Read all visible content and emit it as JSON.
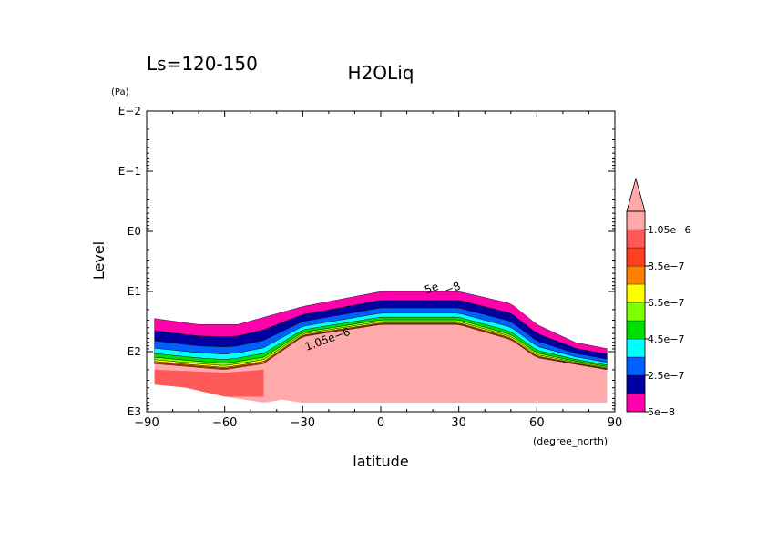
{
  "chart_data": {
    "type": "contour",
    "title": "H2OLiq",
    "subtitle": "Ls=120-150",
    "xlabel": "latitude",
    "xunits": "(degree_north)",
    "ylabel": "Level",
    "yunits": "(Pa)",
    "xlim": [
      -90,
      90
    ],
    "xticks": [
      -90,
      -60,
      -30,
      0,
      30,
      60,
      90
    ],
    "xtick_labels": [
      "−90",
      "−60",
      "−30",
      "0",
      "30",
      "60",
      "90"
    ],
    "yscale": "log",
    "ylim_log10": [
      -2,
      3
    ],
    "ytick_labels": [
      "E−2",
      "E−1",
      "E0",
      "E1",
      "E2",
      "E3"
    ],
    "levels": [
      "5e-8",
      "2.5e-7",
      "4.5e-7",
      "6.5e-7",
      "8.5e-7",
      "1.05e-6"
    ],
    "colorbar": {
      "colors": [
        "#ff00aa",
        "#0000a0",
        "#0060ff",
        "#00ffff",
        "#00e000",
        "#80ff00",
        "#ffff00",
        "#ff8000",
        "#ff4020",
        "#ff5a5a",
        "#ffaaaa"
      ],
      "labels": [
        "5e−8",
        "2.5e−7",
        "4.5e−7",
        "6.5e−7",
        "8.5e−7",
        "1.05e−6"
      ],
      "extend": "max"
    },
    "band_colors": [
      "#ff00aa",
      "#0000a0",
      "#0060ff",
      "#00ffff",
      "#00e000",
      "#80ff00",
      "#ffff00",
      "#ff8000",
      "#ff4020"
    ],
    "field": {
      "top_boundary": [
        [
          -87,
          1.45
        ],
        [
          -70,
          1.55
        ],
        [
          -55,
          1.55
        ],
        [
          -30,
          1.25
        ],
        [
          0,
          1.0
        ],
        [
          30,
          1.0
        ],
        [
          50,
          1.2
        ],
        [
          60,
          1.55
        ],
        [
          75,
          1.85
        ],
        [
          87,
          1.95
        ]
      ],
      "band_depth_scale": [
        1.0,
        0.85,
        0.6,
        0.45,
        0.3,
        0.2,
        0.15,
        0.1,
        0.08
      ],
      "max_region_top": [
        [
          -87,
          2.2
        ],
        [
          -60,
          2.3
        ],
        [
          -45,
          2.2
        ],
        [
          -30,
          1.75
        ],
        [
          0,
          1.55
        ],
        [
          30,
          1.55
        ],
        [
          50,
          1.8
        ],
        [
          60,
          2.1
        ],
        [
          87,
          2.3
        ]
      ],
      "salmon_region_top": [
        [
          -87,
          2.3
        ],
        [
          -60,
          2.35
        ],
        [
          -45,
          2.3
        ]
      ],
      "lower_bound_data": [
        [
          -87,
          2.55
        ],
        [
          -75,
          2.6
        ],
        [
          -60,
          2.75
        ],
        [
          -45,
          2.85
        ],
        [
          -38,
          2.8
        ],
        [
          -30,
          2.85
        ],
        [
          0,
          2.85
        ],
        [
          30,
          2.85
        ],
        [
          60,
          2.85
        ],
        [
          87,
          2.85
        ]
      ]
    },
    "contour_labels": [
      {
        "text": "1.05e−6",
        "lat": -20,
        "lev": 1.85
      },
      {
        "text": "5e",
        "lat": 20,
        "lev": 1.0
      },
      {
        "text": "−8",
        "lat": 28,
        "lev": 1.0
      }
    ]
  }
}
